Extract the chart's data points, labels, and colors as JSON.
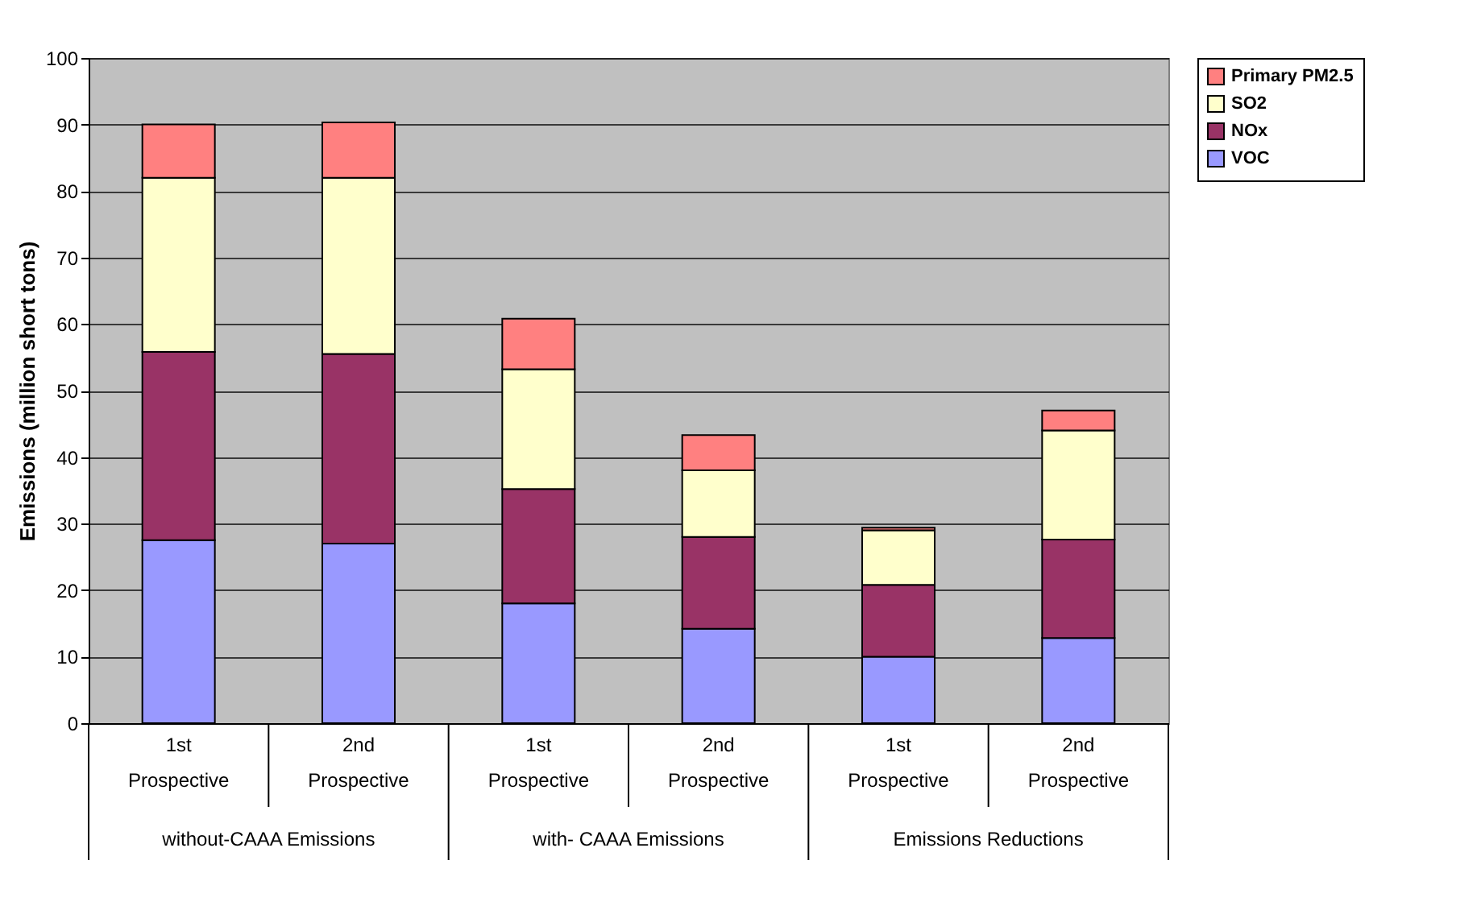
{
  "chart_data": {
    "type": "bar",
    "stacked": true,
    "ylabel": "Emissions (million short tons)",
    "categories": [
      "1st Prospective",
      "2nd Prospective",
      "1st Prospective",
      "2nd Prospective",
      "1st Prospective",
      "2nd Prospective"
    ],
    "series": [
      {
        "name": "VOC",
        "color": "#9999ff",
        "values": [
          27.5,
          27,
          18,
          14.2,
          10,
          12.8
        ]
      },
      {
        "name": "NOx",
        "color": "#993366",
        "values": [
          28.3,
          28.5,
          17.2,
          13.8,
          10.8,
          14.8
        ]
      },
      {
        "name": "SO2",
        "color": "#ffffcc",
        "values": [
          26.2,
          26.5,
          18,
          10,
          8.2,
          16.4
        ]
      },
      {
        "name": "Primary PM2.5",
        "color": "#ff8080",
        "values": [
          8.0,
          8.3,
          7.6,
          5.3,
          0.4,
          3.0
        ]
      }
    ],
    "annotations": [
      "without-CAAA Emissions",
      "with- CAAA Emissions",
      "Emissions Reductions"
    ],
    "ylim": [
      0,
      100
    ],
    "yticks": [
      0,
      10,
      20,
      30,
      40,
      50,
      60,
      70,
      80,
      90,
      100
    ],
    "grid": "y",
    "legend": "right"
  }
}
